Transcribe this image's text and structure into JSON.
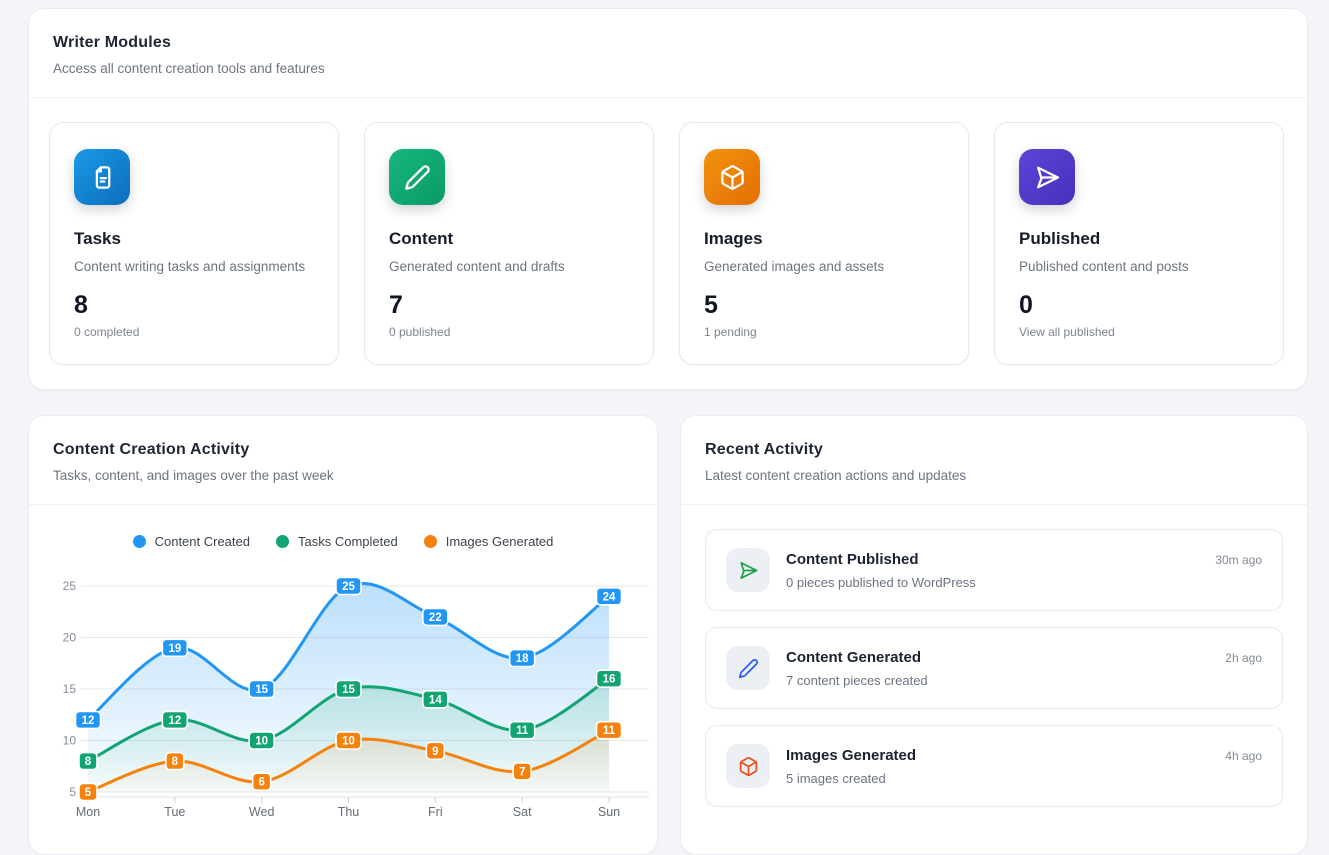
{
  "writer_modules": {
    "title": "Writer Modules",
    "subtitle": "Access all content creation tools and features",
    "cards": [
      {
        "title": "Tasks",
        "description": "Content writing tasks and assignments",
        "value": "8",
        "sub_label": "0 completed",
        "icon": "file-text-icon",
        "gradient_from": "#1a9ae5",
        "gradient_to": "#0b6dbd"
      },
      {
        "title": "Content",
        "description": "Generated content and drafts",
        "value": "7",
        "sub_label": "0 published",
        "icon": "pencil-icon",
        "gradient_from": "#17b77e",
        "gradient_to": "#0a9a66"
      },
      {
        "title": "Images",
        "description": "Generated images and assets",
        "value": "5",
        "sub_label": "1 pending",
        "icon": "cube-icon",
        "gradient_from": "#f3920f",
        "gradient_to": "#e36f04"
      },
      {
        "title": "Published",
        "description": "Published content and posts",
        "value": "0",
        "sub_label": "View all published",
        "icon": "send-icon",
        "gradient_from": "#5a45d8",
        "gradient_to": "#4730ba"
      }
    ]
  },
  "activity_chart": {
    "title": "Content Creation Activity",
    "subtitle": "Tasks, content, and images over the past week"
  },
  "chart_data": {
    "type": "line",
    "x": [
      "Mon",
      "Tue",
      "Wed",
      "Thu",
      "Fri",
      "Sat",
      "Sun"
    ],
    "series": [
      {
        "name": "Content Created",
        "color": "#2196f3",
        "values": [
          12,
          19,
          15,
          25,
          22,
          18,
          24
        ]
      },
      {
        "name": "Tasks Completed",
        "color": "#12a573",
        "values": [
          8,
          12,
          10,
          15,
          14,
          11,
          16
        ]
      },
      {
        "name": "Images Generated",
        "color": "#f5820d",
        "values": [
          5,
          8,
          6,
          10,
          9,
          7,
          11
        ]
      }
    ],
    "ylim": [
      5,
      25
    ],
    "yticks": [
      5,
      10,
      15,
      20,
      25
    ],
    "legend_position": "top",
    "grid": true,
    "smooth": true,
    "area_fill": true,
    "point_labels": true
  },
  "recent_activity": {
    "title": "Recent Activity",
    "subtitle": "Latest content creation actions and updates",
    "items": [
      {
        "title": "Content Published",
        "description": "0 pieces published to WordPress",
        "time": "30m ago",
        "icon": "send-icon",
        "icon_color": "#1ca24e"
      },
      {
        "title": "Content Generated",
        "description": "7 content pieces created",
        "time": "2h ago",
        "icon": "pencil-icon",
        "icon_color": "#2b5cf0"
      },
      {
        "title": "Images Generated",
        "description": "5 images created",
        "time": "4h ago",
        "icon": "cube-icon",
        "icon_color": "#e8511f"
      }
    ]
  }
}
